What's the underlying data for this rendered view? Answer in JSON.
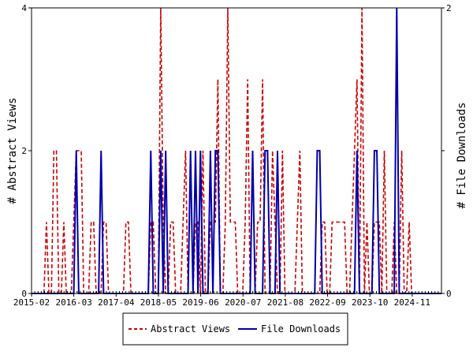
{
  "chart_data": {
    "type": "line",
    "title": "",
    "ylabel_left": "# Abstract Views",
    "ylabel_right": "# File Downloads",
    "x_ticks": [
      "2015-02",
      "2016-03",
      "2017-04",
      "2018-05",
      "2019-06",
      "2020-07",
      "2021-08",
      "2022-09",
      "2023-10",
      "2024-11"
    ],
    "y_left": {
      "min": 0,
      "max": 4,
      "ticks": [
        0,
        2,
        4
      ]
    },
    "y_right": {
      "min": 0,
      "max": 2,
      "ticks": [
        0,
        1,
        2
      ],
      "tick_labels": [
        "0",
        "",
        "2"
      ]
    },
    "x_range": [
      "2015-02",
      "2025-08"
    ],
    "legend_position": "bottom-center",
    "grid": false,
    "series": [
      {
        "name": "Abstract Views",
        "axis": "left",
        "color": "#cc0000",
        "style": "dashed",
        "values": [
          [
            0,
            0
          ],
          [
            1,
            0
          ],
          [
            2,
            0
          ],
          [
            3,
            0
          ],
          [
            4,
            0
          ],
          [
            5,
            0
          ],
          [
            6,
            1
          ],
          [
            7,
            0
          ],
          [
            8,
            0
          ],
          [
            9,
            2
          ],
          [
            10,
            2
          ],
          [
            11,
            0
          ],
          [
            12,
            0
          ],
          [
            13,
            1
          ],
          [
            14,
            0
          ],
          [
            15,
            0
          ],
          [
            16,
            0
          ],
          [
            17,
            1
          ],
          [
            18,
            2
          ],
          [
            19,
            2
          ],
          [
            20,
            2
          ],
          [
            21,
            0
          ],
          [
            22,
            0
          ],
          [
            23,
            0
          ],
          [
            24,
            1
          ],
          [
            25,
            1
          ],
          [
            26,
            0
          ],
          [
            27,
            0
          ],
          [
            28,
            0
          ],
          [
            29,
            1
          ],
          [
            30,
            1
          ],
          [
            31,
            0
          ],
          [
            32,
            0
          ],
          [
            33,
            0
          ],
          [
            34,
            0
          ],
          [
            35,
            0
          ],
          [
            36,
            0
          ],
          [
            37,
            0
          ],
          [
            38,
            1
          ],
          [
            39,
            1
          ],
          [
            40,
            0
          ],
          [
            41,
            0
          ],
          [
            42,
            0
          ],
          [
            43,
            0
          ],
          [
            44,
            0
          ],
          [
            45,
            0
          ],
          [
            46,
            0
          ],
          [
            47,
            0
          ],
          [
            48,
            1
          ],
          [
            49,
            1
          ],
          [
            50,
            0
          ],
          [
            51,
            0
          ],
          [
            52,
            4
          ],
          [
            53,
            1
          ],
          [
            54,
            0
          ],
          [
            55,
            0
          ],
          [
            56,
            1
          ],
          [
            57,
            1
          ],
          [
            58,
            0
          ],
          [
            59,
            0
          ],
          [
            60,
            0
          ],
          [
            61,
            1
          ],
          [
            62,
            2
          ],
          [
            63,
            0
          ],
          [
            64,
            0
          ],
          [
            65,
            0
          ],
          [
            66,
            1
          ],
          [
            67,
            1
          ],
          [
            68,
            0
          ],
          [
            69,
            2
          ],
          [
            70,
            0
          ],
          [
            71,
            0
          ],
          [
            72,
            1
          ],
          [
            73,
            1
          ],
          [
            74,
            1
          ],
          [
            75,
            3
          ],
          [
            76,
            0
          ],
          [
            77,
            0
          ],
          [
            78,
            1
          ],
          [
            79,
            4
          ],
          [
            80,
            1
          ],
          [
            81,
            1
          ],
          [
            82,
            1
          ],
          [
            83,
            0
          ],
          [
            84,
            0
          ],
          [
            85,
            0
          ],
          [
            86,
            1
          ],
          [
            87,
            3
          ],
          [
            88,
            0
          ],
          [
            89,
            0
          ],
          [
            90,
            0
          ],
          [
            91,
            1
          ],
          [
            92,
            1
          ],
          [
            93,
            3
          ],
          [
            94,
            0
          ],
          [
            95,
            0
          ],
          [
            96,
            0
          ],
          [
            97,
            2
          ],
          [
            98,
            1
          ],
          [
            99,
            0
          ],
          [
            100,
            0
          ],
          [
            101,
            2
          ],
          [
            102,
            0
          ],
          [
            103,
            0
          ],
          [
            104,
            0
          ],
          [
            105,
            0
          ],
          [
            106,
            0
          ],
          [
            107,
            1
          ],
          [
            108,
            2
          ],
          [
            109,
            0
          ],
          [
            110,
            0
          ],
          [
            111,
            0
          ],
          [
            112,
            0
          ],
          [
            113,
            0
          ],
          [
            114,
            0
          ],
          [
            115,
            0
          ],
          [
            116,
            0
          ],
          [
            117,
            1
          ],
          [
            118,
            1
          ],
          [
            119,
            0
          ],
          [
            120,
            0
          ],
          [
            121,
            1
          ],
          [
            122,
            1
          ],
          [
            123,
            1
          ],
          [
            124,
            1
          ],
          [
            125,
            1
          ],
          [
            126,
            1
          ],
          [
            127,
            0
          ],
          [
            128,
            0
          ],
          [
            129,
            1
          ],
          [
            130,
            2
          ],
          [
            131,
            3
          ],
          [
            132,
            0
          ],
          [
            133,
            4
          ],
          [
            134,
            0
          ],
          [
            135,
            1
          ],
          [
            136,
            0
          ],
          [
            137,
            0
          ],
          [
            138,
            1
          ],
          [
            139,
            1
          ],
          [
            140,
            1
          ],
          [
            141,
            0
          ],
          [
            142,
            2
          ],
          [
            143,
            0
          ],
          [
            144,
            0
          ],
          [
            145,
            0
          ],
          [
            146,
            1
          ],
          [
            147,
            0
          ],
          [
            148,
            0
          ],
          [
            149,
            2
          ],
          [
            150,
            0
          ],
          [
            151,
            0
          ],
          [
            152,
            1
          ],
          [
            153,
            0
          ],
          [
            154,
            0
          ],
          [
            155,
            0
          ],
          [
            156,
            0
          ],
          [
            157,
            0
          ],
          [
            158,
            0
          ],
          [
            159,
            0
          ],
          [
            160,
            0
          ],
          [
            161,
            0
          ],
          [
            162,
            0
          ],
          [
            163,
            0
          ],
          [
            164,
            0
          ],
          [
            165,
            0
          ]
        ]
      },
      {
        "name": "File Downloads",
        "axis": "right",
        "color": "#0000aa",
        "style": "solid",
        "values": [
          [
            0,
            0
          ],
          [
            1,
            0
          ],
          [
            2,
            0
          ],
          [
            3,
            0
          ],
          [
            4,
            0
          ],
          [
            5,
            0
          ],
          [
            6,
            0
          ],
          [
            7,
            0
          ],
          [
            8,
            0
          ],
          [
            9,
            0
          ],
          [
            10,
            0
          ],
          [
            11,
            0
          ],
          [
            12,
            0
          ],
          [
            13,
            0
          ],
          [
            14,
            0
          ],
          [
            15,
            0
          ],
          [
            16,
            0
          ],
          [
            17,
            0
          ],
          [
            18,
            1
          ],
          [
            19,
            0
          ],
          [
            20,
            0
          ],
          [
            21,
            0
          ],
          [
            22,
            0
          ],
          [
            23,
            0
          ],
          [
            24,
            0
          ],
          [
            25,
            0
          ],
          [
            26,
            0
          ],
          [
            27,
            0
          ],
          [
            28,
            1
          ],
          [
            29,
            0
          ],
          [
            30,
            0
          ],
          [
            31,
            0
          ],
          [
            32,
            0
          ],
          [
            33,
            0
          ],
          [
            34,
            0
          ],
          [
            35,
            0
          ],
          [
            36,
            0
          ],
          [
            37,
            0
          ],
          [
            38,
            0
          ],
          [
            39,
            0
          ],
          [
            40,
            0
          ],
          [
            41,
            0
          ],
          [
            42,
            0
          ],
          [
            43,
            0
          ],
          [
            44,
            0
          ],
          [
            45,
            0
          ],
          [
            46,
            0
          ],
          [
            47,
            0
          ],
          [
            48,
            1
          ],
          [
            49,
            0
          ],
          [
            50,
            0
          ],
          [
            51,
            0
          ],
          [
            52,
            1
          ],
          [
            53,
            0
          ],
          [
            54,
            1
          ],
          [
            55,
            0
          ],
          [
            56,
            0
          ],
          [
            57,
            0
          ],
          [
            58,
            0
          ],
          [
            59,
            0
          ],
          [
            60,
            0
          ],
          [
            61,
            0
          ],
          [
            62,
            0
          ],
          [
            63,
            0
          ],
          [
            64,
            1
          ],
          [
            65,
            0
          ],
          [
            66,
            1
          ],
          [
            67,
            0
          ],
          [
            68,
            1
          ],
          [
            69,
            0
          ],
          [
            70,
            0
          ],
          [
            71,
            0
          ],
          [
            72,
            1
          ],
          [
            73,
            0
          ],
          [
            74,
            1
          ],
          [
            75,
            1
          ],
          [
            76,
            0
          ],
          [
            77,
            0
          ],
          [
            78,
            0
          ],
          [
            79,
            0
          ],
          [
            80,
            0
          ],
          [
            81,
            0
          ],
          [
            82,
            0
          ],
          [
            83,
            0
          ],
          [
            84,
            0
          ],
          [
            85,
            0
          ],
          [
            86,
            0
          ],
          [
            87,
            0
          ],
          [
            88,
            0
          ],
          [
            89,
            1
          ],
          [
            90,
            0
          ],
          [
            91,
            0
          ],
          [
            92,
            0
          ],
          [
            93,
            0
          ],
          [
            94,
            1
          ],
          [
            95,
            1
          ],
          [
            96,
            0
          ],
          [
            97,
            0
          ],
          [
            98,
            0
          ],
          [
            99,
            1
          ],
          [
            100,
            0
          ],
          [
            101,
            0
          ],
          [
            102,
            0
          ],
          [
            103,
            0
          ],
          [
            104,
            0
          ],
          [
            105,
            0
          ],
          [
            106,
            0
          ],
          [
            107,
            0
          ],
          [
            108,
            0
          ],
          [
            109,
            0
          ],
          [
            110,
            0
          ],
          [
            111,
            0
          ],
          [
            112,
            0
          ],
          [
            113,
            0
          ],
          [
            114,
            0
          ],
          [
            115,
            1
          ],
          [
            116,
            1
          ],
          [
            117,
            0
          ],
          [
            118,
            0
          ],
          [
            119,
            0
          ],
          [
            120,
            0
          ],
          [
            121,
            0
          ],
          [
            122,
            0
          ],
          [
            123,
            0
          ],
          [
            124,
            0
          ],
          [
            125,
            0
          ],
          [
            126,
            0
          ],
          [
            127,
            0
          ],
          [
            128,
            0
          ],
          [
            129,
            0
          ],
          [
            130,
            0
          ],
          [
            131,
            1
          ],
          [
            132,
            0
          ],
          [
            133,
            0
          ],
          [
            134,
            0
          ],
          [
            135,
            0
          ],
          [
            136,
            0
          ],
          [
            137,
            0
          ],
          [
            138,
            1
          ],
          [
            139,
            1
          ],
          [
            140,
            0
          ],
          [
            141,
            0
          ],
          [
            142,
            0
          ],
          [
            143,
            0
          ],
          [
            144,
            0
          ],
          [
            145,
            0
          ],
          [
            146,
            0
          ],
          [
            147,
            2
          ],
          [
            148,
            0
          ],
          [
            149,
            0
          ],
          [
            150,
            0
          ],
          [
            151,
            0
          ],
          [
            152,
            0
          ],
          [
            153,
            0
          ],
          [
            154,
            0
          ],
          [
            155,
            0
          ],
          [
            156,
            0
          ],
          [
            157,
            0
          ],
          [
            158,
            0
          ],
          [
            159,
            0
          ],
          [
            160,
            0
          ],
          [
            161,
            0
          ],
          [
            162,
            0
          ],
          [
            163,
            0
          ],
          [
            164,
            0
          ],
          [
            165,
            0
          ]
        ]
      }
    ]
  }
}
